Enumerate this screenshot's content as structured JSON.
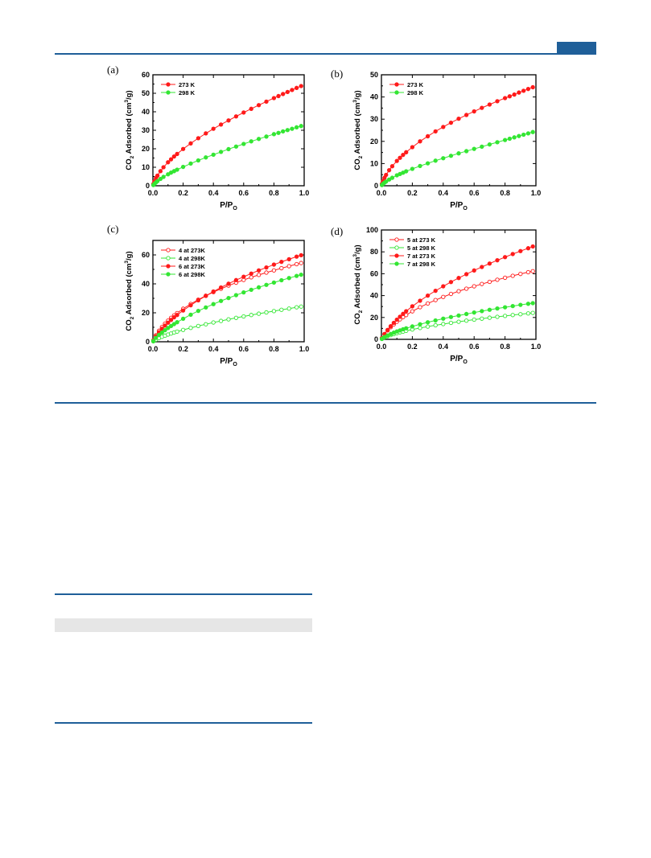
{
  "colors": {
    "accent": "#1f5f99",
    "red": "#ff1a1a",
    "green": "#33e633"
  },
  "figure": {
    "panels": [
      {
        "label": "(a)"
      },
      {
        "label": "(b)"
      },
      {
        "label": "(c)"
      },
      {
        "label": "(d)"
      }
    ]
  },
  "chart_data": [
    {
      "type": "line",
      "xlabel": "P/P",
      "xlabel_sub": "O",
      "ylabel_parts": [
        "CO",
        "2",
        " Adsorbed (cm",
        "3",
        "/g)"
      ],
      "xlim": [
        0.0,
        1.0
      ],
      "ylim": [
        0,
        60
      ],
      "xticks": [
        "0.0",
        "0.2",
        "0.4",
        "0.6",
        "0.8",
        "1.0"
      ],
      "yticks": [
        "0",
        "10",
        "20",
        "30",
        "40",
        "50",
        "60"
      ],
      "legend_placement": "top-left",
      "series": [
        {
          "name": "273 K",
          "color": "#ff1a1a",
          "filled": true,
          "x": [
            0.003,
            0.01,
            0.02,
            0.03,
            0.05,
            0.07,
            0.1,
            0.12,
            0.14,
            0.16,
            0.2,
            0.25,
            0.3,
            0.35,
            0.4,
            0.45,
            0.5,
            0.55,
            0.6,
            0.65,
            0.7,
            0.75,
            0.8,
            0.83,
            0.86,
            0.89,
            0.92,
            0.95,
            0.98
          ],
          "y": [
            0.9,
            2.4,
            4.1,
            5.5,
            7.9,
            10.0,
            12.7,
            14.3,
            15.8,
            17.2,
            19.9,
            22.9,
            25.7,
            28.3,
            30.8,
            33.1,
            35.3,
            37.5,
            39.6,
            41.6,
            43.6,
            45.5,
            47.4,
            48.5,
            49.6,
            50.7,
            51.8,
            52.9,
            53.9
          ]
        },
        {
          "name": "298 K",
          "color": "#33e633",
          "filled": true,
          "x": [
            0.003,
            0.01,
            0.02,
            0.03,
            0.05,
            0.07,
            0.1,
            0.12,
            0.14,
            0.16,
            0.2,
            0.25,
            0.3,
            0.35,
            0.4,
            0.45,
            0.5,
            0.55,
            0.6,
            0.65,
            0.7,
            0.75,
            0.8,
            0.83,
            0.86,
            0.89,
            0.92,
            0.95,
            0.98
          ],
          "y": [
            0.4,
            1.0,
            1.8,
            2.5,
            3.7,
            4.8,
            6.2,
            7.1,
            7.9,
            8.7,
            10.2,
            12.0,
            13.7,
            15.3,
            16.8,
            18.3,
            19.8,
            21.2,
            22.6,
            24.0,
            25.3,
            26.6,
            27.9,
            28.6,
            29.4,
            30.1,
            30.8,
            31.6,
            32.3
          ]
        }
      ]
    },
    {
      "type": "line",
      "xlabel": "P/P",
      "xlabel_sub": "O",
      "ylabel_parts": [
        "CO",
        "2",
        " Adsorbed (cm",
        "3",
        "/g)"
      ],
      "xlim": [
        0.0,
        1.0
      ],
      "ylim": [
        0,
        50
      ],
      "xticks": [
        "0.0",
        "0.2",
        "0.4",
        "0.6",
        "0.8",
        "1.0"
      ],
      "yticks": [
        "0",
        "10",
        "20",
        "30",
        "40",
        "50"
      ],
      "legend_placement": "top-left",
      "series": [
        {
          "name": "273 K",
          "color": "#ff1a1a",
          "filled": true,
          "x": [
            0.003,
            0.01,
            0.02,
            0.03,
            0.05,
            0.07,
            0.1,
            0.12,
            0.14,
            0.16,
            0.2,
            0.25,
            0.3,
            0.35,
            0.4,
            0.45,
            0.5,
            0.55,
            0.6,
            0.65,
            0.7,
            0.75,
            0.8,
            0.83,
            0.86,
            0.89,
            0.92,
            0.95,
            0.98
          ],
          "y": [
            0.8,
            2.1,
            3.6,
            4.9,
            7.0,
            8.8,
            11.2,
            12.6,
            13.9,
            15.1,
            17.4,
            20.0,
            22.3,
            24.5,
            26.5,
            28.4,
            30.2,
            31.9,
            33.5,
            35.1,
            36.6,
            38.1,
            39.5,
            40.3,
            41.1,
            42.0,
            42.8,
            43.6,
            44.4
          ]
        },
        {
          "name": "298 K",
          "color": "#33e633",
          "filled": true,
          "x": [
            0.003,
            0.01,
            0.02,
            0.03,
            0.05,
            0.07,
            0.1,
            0.12,
            0.14,
            0.16,
            0.2,
            0.25,
            0.3,
            0.35,
            0.4,
            0.45,
            0.5,
            0.55,
            0.6,
            0.65,
            0.7,
            0.75,
            0.8,
            0.83,
            0.86,
            0.89,
            0.92,
            0.95,
            0.98
          ],
          "y": [
            0.3,
            0.8,
            1.4,
            1.9,
            2.8,
            3.6,
            4.7,
            5.3,
            5.9,
            6.5,
            7.6,
            8.9,
            10.1,
            11.3,
            12.4,
            13.5,
            14.6,
            15.6,
            16.6,
            17.6,
            18.6,
            19.6,
            20.6,
            21.2,
            21.8,
            22.4,
            23.0,
            23.6,
            24.2
          ]
        }
      ]
    },
    {
      "type": "line",
      "xlabel": "P/P",
      "xlabel_sub": "O",
      "ylabel_parts": [
        "CO",
        "2",
        " Adsorbed (cm",
        "3",
        "/g)"
      ],
      "xlim": [
        0.0,
        1.0
      ],
      "ylim": [
        0,
        70
      ],
      "xticks": [
        "0.0",
        "0.2",
        "0.4",
        "0.6",
        "0.8",
        "1.0"
      ],
      "yticks": [
        "0",
        "20",
        "40",
        "60"
      ],
      "legend_placement": "top-left",
      "series": [
        {
          "name": "4 at  273K",
          "color": "#ff1a1a",
          "filled": false,
          "x": [
            0.003,
            0.02,
            0.04,
            0.06,
            0.08,
            0.1,
            0.12,
            0.14,
            0.16,
            0.2,
            0.25,
            0.3,
            0.35,
            0.4,
            0.45,
            0.5,
            0.55,
            0.6,
            0.65,
            0.7,
            0.75,
            0.8,
            0.85,
            0.9,
            0.95,
            0.98
          ],
          "y": [
            1.0,
            4.5,
            7.6,
            10.2,
            12.5,
            14.6,
            16.5,
            18.2,
            19.8,
            22.8,
            26.1,
            29.1,
            31.8,
            34.3,
            36.6,
            38.8,
            40.8,
            42.7,
            44.5,
            46.2,
            47.8,
            49.3,
            50.8,
            52.2,
            53.6,
            54.4
          ]
        },
        {
          "name": "4 at  298K",
          "color": "#33e633",
          "filled": false,
          "x": [
            0.003,
            0.02,
            0.04,
            0.06,
            0.08,
            0.1,
            0.12,
            0.14,
            0.16,
            0.2,
            0.25,
            0.3,
            0.35,
            0.4,
            0.45,
            0.5,
            0.55,
            0.6,
            0.65,
            0.7,
            0.75,
            0.8,
            0.85,
            0.9,
            0.95,
            0.98
          ],
          "y": [
            0.3,
            1.4,
            2.5,
            3.4,
            4.2,
            5.0,
            5.7,
            6.4,
            7.0,
            8.2,
            9.6,
            10.9,
            12.1,
            13.3,
            14.4,
            15.5,
            16.5,
            17.5,
            18.5,
            19.4,
            20.3,
            21.2,
            22.1,
            22.9,
            23.8,
            24.3
          ]
        },
        {
          "name": "6 at  273K",
          "color": "#ff1a1a",
          "filled": true,
          "x": [
            0.003,
            0.02,
            0.04,
            0.06,
            0.08,
            0.1,
            0.12,
            0.14,
            0.16,
            0.2,
            0.25,
            0.3,
            0.35,
            0.4,
            0.45,
            0.5,
            0.55,
            0.6,
            0.65,
            0.7,
            0.75,
            0.8,
            0.85,
            0.9,
            0.95,
            0.98
          ],
          "y": [
            0.9,
            3.8,
            6.6,
            9.0,
            11.2,
            13.2,
            15.1,
            16.9,
            18.5,
            21.6,
            25.2,
            28.6,
            31.7,
            34.7,
            37.5,
            40.1,
            42.6,
            44.9,
            47.1,
            49.3,
            51.3,
            53.3,
            55.2,
            57.0,
            58.8,
            59.8
          ]
        },
        {
          "name": "6 at  298K",
          "color": "#33e633",
          "filled": true,
          "x": [
            0.003,
            0.02,
            0.04,
            0.06,
            0.08,
            0.1,
            0.12,
            0.14,
            0.16,
            0.2,
            0.25,
            0.3,
            0.35,
            0.4,
            0.45,
            0.5,
            0.55,
            0.6,
            0.65,
            0.7,
            0.75,
            0.8,
            0.85,
            0.9,
            0.95,
            0.98
          ],
          "y": [
            0.6,
            2.7,
            4.7,
            6.4,
            8.0,
            9.5,
            10.9,
            12.2,
            13.5,
            15.9,
            18.7,
            21.3,
            23.7,
            26.0,
            28.2,
            30.2,
            32.2,
            34.1,
            35.9,
            37.6,
            39.3,
            40.9,
            42.5,
            44.0,
            45.5,
            46.3
          ]
        }
      ]
    },
    {
      "type": "line",
      "xlabel": "P/P",
      "xlabel_sub": "O",
      "ylabel_parts": [
        "CO",
        "2",
        " Adsorbed (cm",
        "3",
        "/g)"
      ],
      "xlim": [
        0.0,
        1.0
      ],
      "ylim": [
        0,
        100
      ],
      "xticks": [
        "0.0",
        "0.2",
        "0.4",
        "0.6",
        "0.8",
        "1.0"
      ],
      "yticks": [
        "0",
        "20",
        "40",
        "60",
        "80",
        "100"
      ],
      "legend_placement": "top-left",
      "series": [
        {
          "name": "5 at  273 K",
          "color": "#ff1a1a",
          "filled": false,
          "x": [
            0.003,
            0.02,
            0.04,
            0.06,
            0.08,
            0.1,
            0.12,
            0.14,
            0.16,
            0.2,
            0.25,
            0.3,
            0.35,
            0.4,
            0.45,
            0.5,
            0.55,
            0.6,
            0.65,
            0.7,
            0.75,
            0.8,
            0.85,
            0.9,
            0.95,
            0.98
          ],
          "y": [
            1.0,
            4.8,
            8.2,
            11.1,
            13.7,
            16.1,
            18.3,
            20.3,
            22.2,
            25.6,
            29.4,
            32.8,
            35.9,
            38.8,
            41.5,
            44.0,
            46.3,
            48.5,
            50.6,
            52.6,
            54.5,
            56.3,
            58.1,
            59.8,
            61.4,
            62.3
          ]
        },
        {
          "name": "5 at  298 K",
          "color": "#33e633",
          "filled": false,
          "x": [
            0.003,
            0.02,
            0.04,
            0.06,
            0.08,
            0.1,
            0.12,
            0.14,
            0.16,
            0.2,
            0.25,
            0.3,
            0.35,
            0.4,
            0.45,
            0.5,
            0.55,
            0.6,
            0.65,
            0.7,
            0.75,
            0.8,
            0.85,
            0.9,
            0.95,
            0.98
          ],
          "y": [
            0.4,
            1.7,
            2.9,
            3.9,
            4.8,
            5.6,
            6.4,
            7.1,
            7.8,
            9.0,
            10.4,
            11.7,
            12.9,
            14.0,
            15.1,
            16.1,
            17.1,
            18.0,
            18.9,
            19.8,
            20.6,
            21.4,
            22.2,
            23.0,
            23.7,
            24.2
          ]
        },
        {
          "name": "7 at  273 K",
          "color": "#ff1a1a",
          "filled": true,
          "x": [
            0.003,
            0.02,
            0.04,
            0.06,
            0.08,
            0.1,
            0.12,
            0.14,
            0.16,
            0.2,
            0.25,
            0.3,
            0.35,
            0.4,
            0.45,
            0.5,
            0.55,
            0.6,
            0.65,
            0.7,
            0.75,
            0.8,
            0.85,
            0.9,
            0.95,
            0.98
          ],
          "y": [
            1.2,
            4.9,
            8.6,
            12.0,
            15.1,
            18.0,
            20.7,
            23.3,
            25.7,
            30.2,
            35.3,
            40.0,
            44.4,
            48.5,
            52.4,
            56.1,
            59.6,
            63.0,
            66.2,
            69.3,
            72.3,
            75.2,
            78.0,
            80.7,
            83.3,
            84.9
          ]
        },
        {
          "name": "7 at  298 K",
          "color": "#33e633",
          "filled": true,
          "x": [
            0.003,
            0.02,
            0.04,
            0.06,
            0.08,
            0.1,
            0.12,
            0.14,
            0.16,
            0.2,
            0.25,
            0.3,
            0.35,
            0.4,
            0.45,
            0.5,
            0.55,
            0.6,
            0.65,
            0.7,
            0.75,
            0.8,
            0.85,
            0.9,
            0.95,
            0.98
          ],
          "y": [
            0.5,
            2.1,
            3.6,
            4.9,
            6.1,
            7.2,
            8.2,
            9.2,
            10.1,
            11.8,
            13.8,
            15.6,
            17.3,
            18.9,
            20.4,
            21.8,
            23.2,
            24.5,
            25.8,
            27.0,
            28.2,
            29.3,
            30.4,
            31.5,
            32.5,
            33.1
          ]
        }
      ]
    }
  ]
}
